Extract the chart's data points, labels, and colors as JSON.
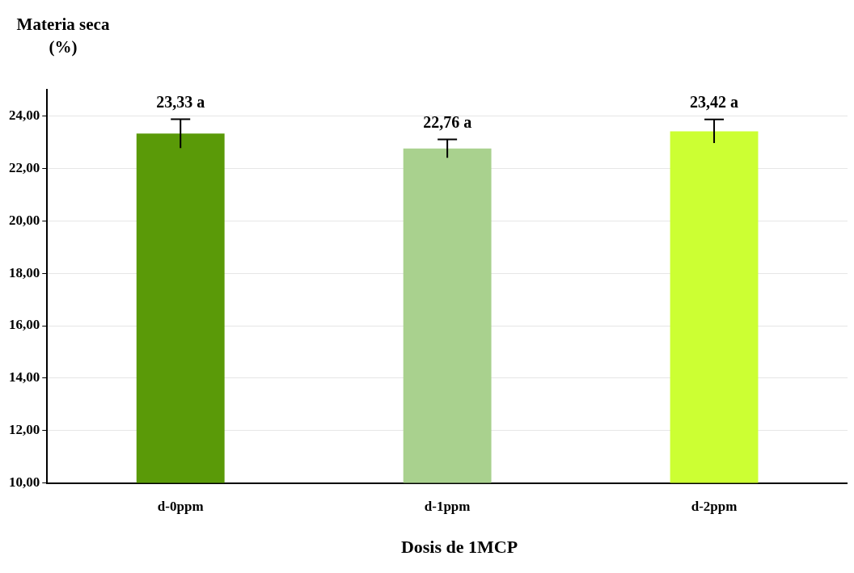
{
  "chart_data": {
    "type": "bar",
    "ylabel": "Materia seca (%)",
    "xlabel": "Dosis de 1MCP",
    "categories": [
      "d-0ppm",
      "d-1ppm",
      "d-2ppm"
    ],
    "values": [
      23.33,
      22.76,
      23.42
    ],
    "colors": [
      "#5a9a08",
      "#a9d18e",
      "#ccff33"
    ],
    "errors": [
      0.55,
      0.35,
      0.45
    ],
    "value_labels": [
      "23,33 a",
      "22,76 a",
      "23,42 a"
    ],
    "ylim": [
      10,
      25
    ],
    "yticks": [
      {
        "value": 10,
        "label": "10,00"
      },
      {
        "value": 12,
        "label": "12,00"
      },
      {
        "value": 14,
        "label": "14,00"
      },
      {
        "value": 16,
        "label": "16,00"
      },
      {
        "value": 18,
        "label": "18,00"
      },
      {
        "value": 20,
        "label": "20,00"
      },
      {
        "value": 22,
        "label": "22,00"
      },
      {
        "value": 24,
        "label": "24,00"
      }
    ],
    "grid": "y",
    "legend": false
  }
}
